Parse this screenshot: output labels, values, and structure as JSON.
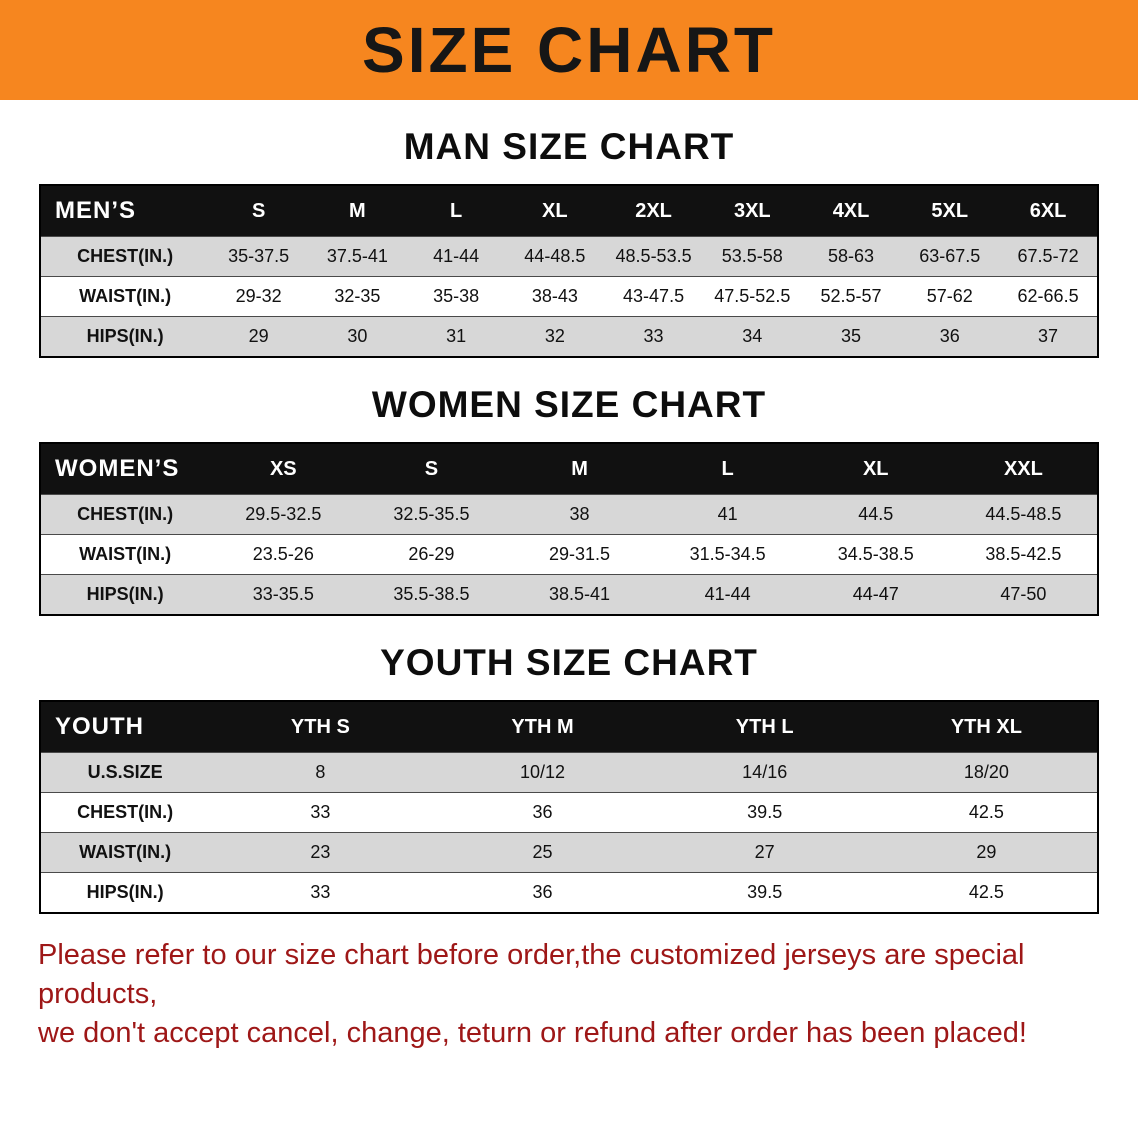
{
  "banner": {
    "title": "SIZE CHART"
  },
  "colors": {
    "banner_bg": "#F6861F",
    "table_header_bg": "#111111",
    "row_stripe": "#d7d7d7",
    "footer_text": "#9e1717"
  },
  "sections": [
    {
      "title": "MAN SIZE CHART",
      "table": {
        "header": [
          "MEN’S",
          "S",
          "M",
          "L",
          "XL",
          "2XL",
          "3XL",
          "4XL",
          "5XL",
          "6XL"
        ],
        "rows": [
          {
            "label": "CHEST(IN.)",
            "values": [
              "35-37.5",
              "37.5-41",
              "41-44",
              "44-48.5",
              "48.5-53.5",
              "53.5-58",
              "58-63",
              "63-67.5",
              "67.5-72"
            ]
          },
          {
            "label": "WAIST(IN.)",
            "values": [
              "29-32",
              "32-35",
              "35-38",
              "38-43",
              "43-47.5",
              "47.5-52.5",
              "52.5-57",
              "57-62",
              "62-66.5"
            ]
          },
          {
            "label": "HIPS(IN.)",
            "values": [
              "29",
              "30",
              "31",
              "32",
              "33",
              "34",
              "35",
              "36",
              "37"
            ]
          }
        ]
      }
    },
    {
      "title": "WOMEN SIZE CHART",
      "table": {
        "header": [
          "WOMEN’S",
          "XS",
          "S",
          "M",
          "L",
          "XL",
          "XXL"
        ],
        "rows": [
          {
            "label": "CHEST(IN.)",
            "values": [
              "29.5-32.5",
              "32.5-35.5",
              "38",
              "41",
              "44.5",
              "44.5-48.5"
            ]
          },
          {
            "label": "WAIST(IN.)",
            "values": [
              "23.5-26",
              "26-29",
              "29-31.5",
              "31.5-34.5",
              "34.5-38.5",
              "38.5-42.5"
            ]
          },
          {
            "label": "HIPS(IN.)",
            "values": [
              "33-35.5",
              "35.5-38.5",
              "38.5-41",
              "41-44",
              "44-47",
              "47-50"
            ]
          }
        ]
      }
    },
    {
      "title": "YOUTH SIZE CHART",
      "table": {
        "header": [
          "YOUTH",
          "YTH S",
          "YTH M",
          "YTH L",
          "YTH XL"
        ],
        "rows": [
          {
            "label": "U.S.SIZE",
            "values": [
              "8",
              "10/12",
              "14/16",
              "18/20"
            ]
          },
          {
            "label": "CHEST(IN.)",
            "values": [
              "33",
              "36",
              "39.5",
              "42.5"
            ]
          },
          {
            "label": "WAIST(IN.)",
            "values": [
              "23",
              "25",
              "27",
              "29"
            ]
          },
          {
            "label": "HIPS(IN.)",
            "values": [
              "33",
              "36",
              "39.5",
              "42.5"
            ]
          }
        ]
      }
    }
  ],
  "footer": {
    "line1": "Please refer to our size chart before order,the customized jerseys are special products,",
    "line2": "we don't accept cancel, change, teturn or refund after order has been placed!"
  }
}
